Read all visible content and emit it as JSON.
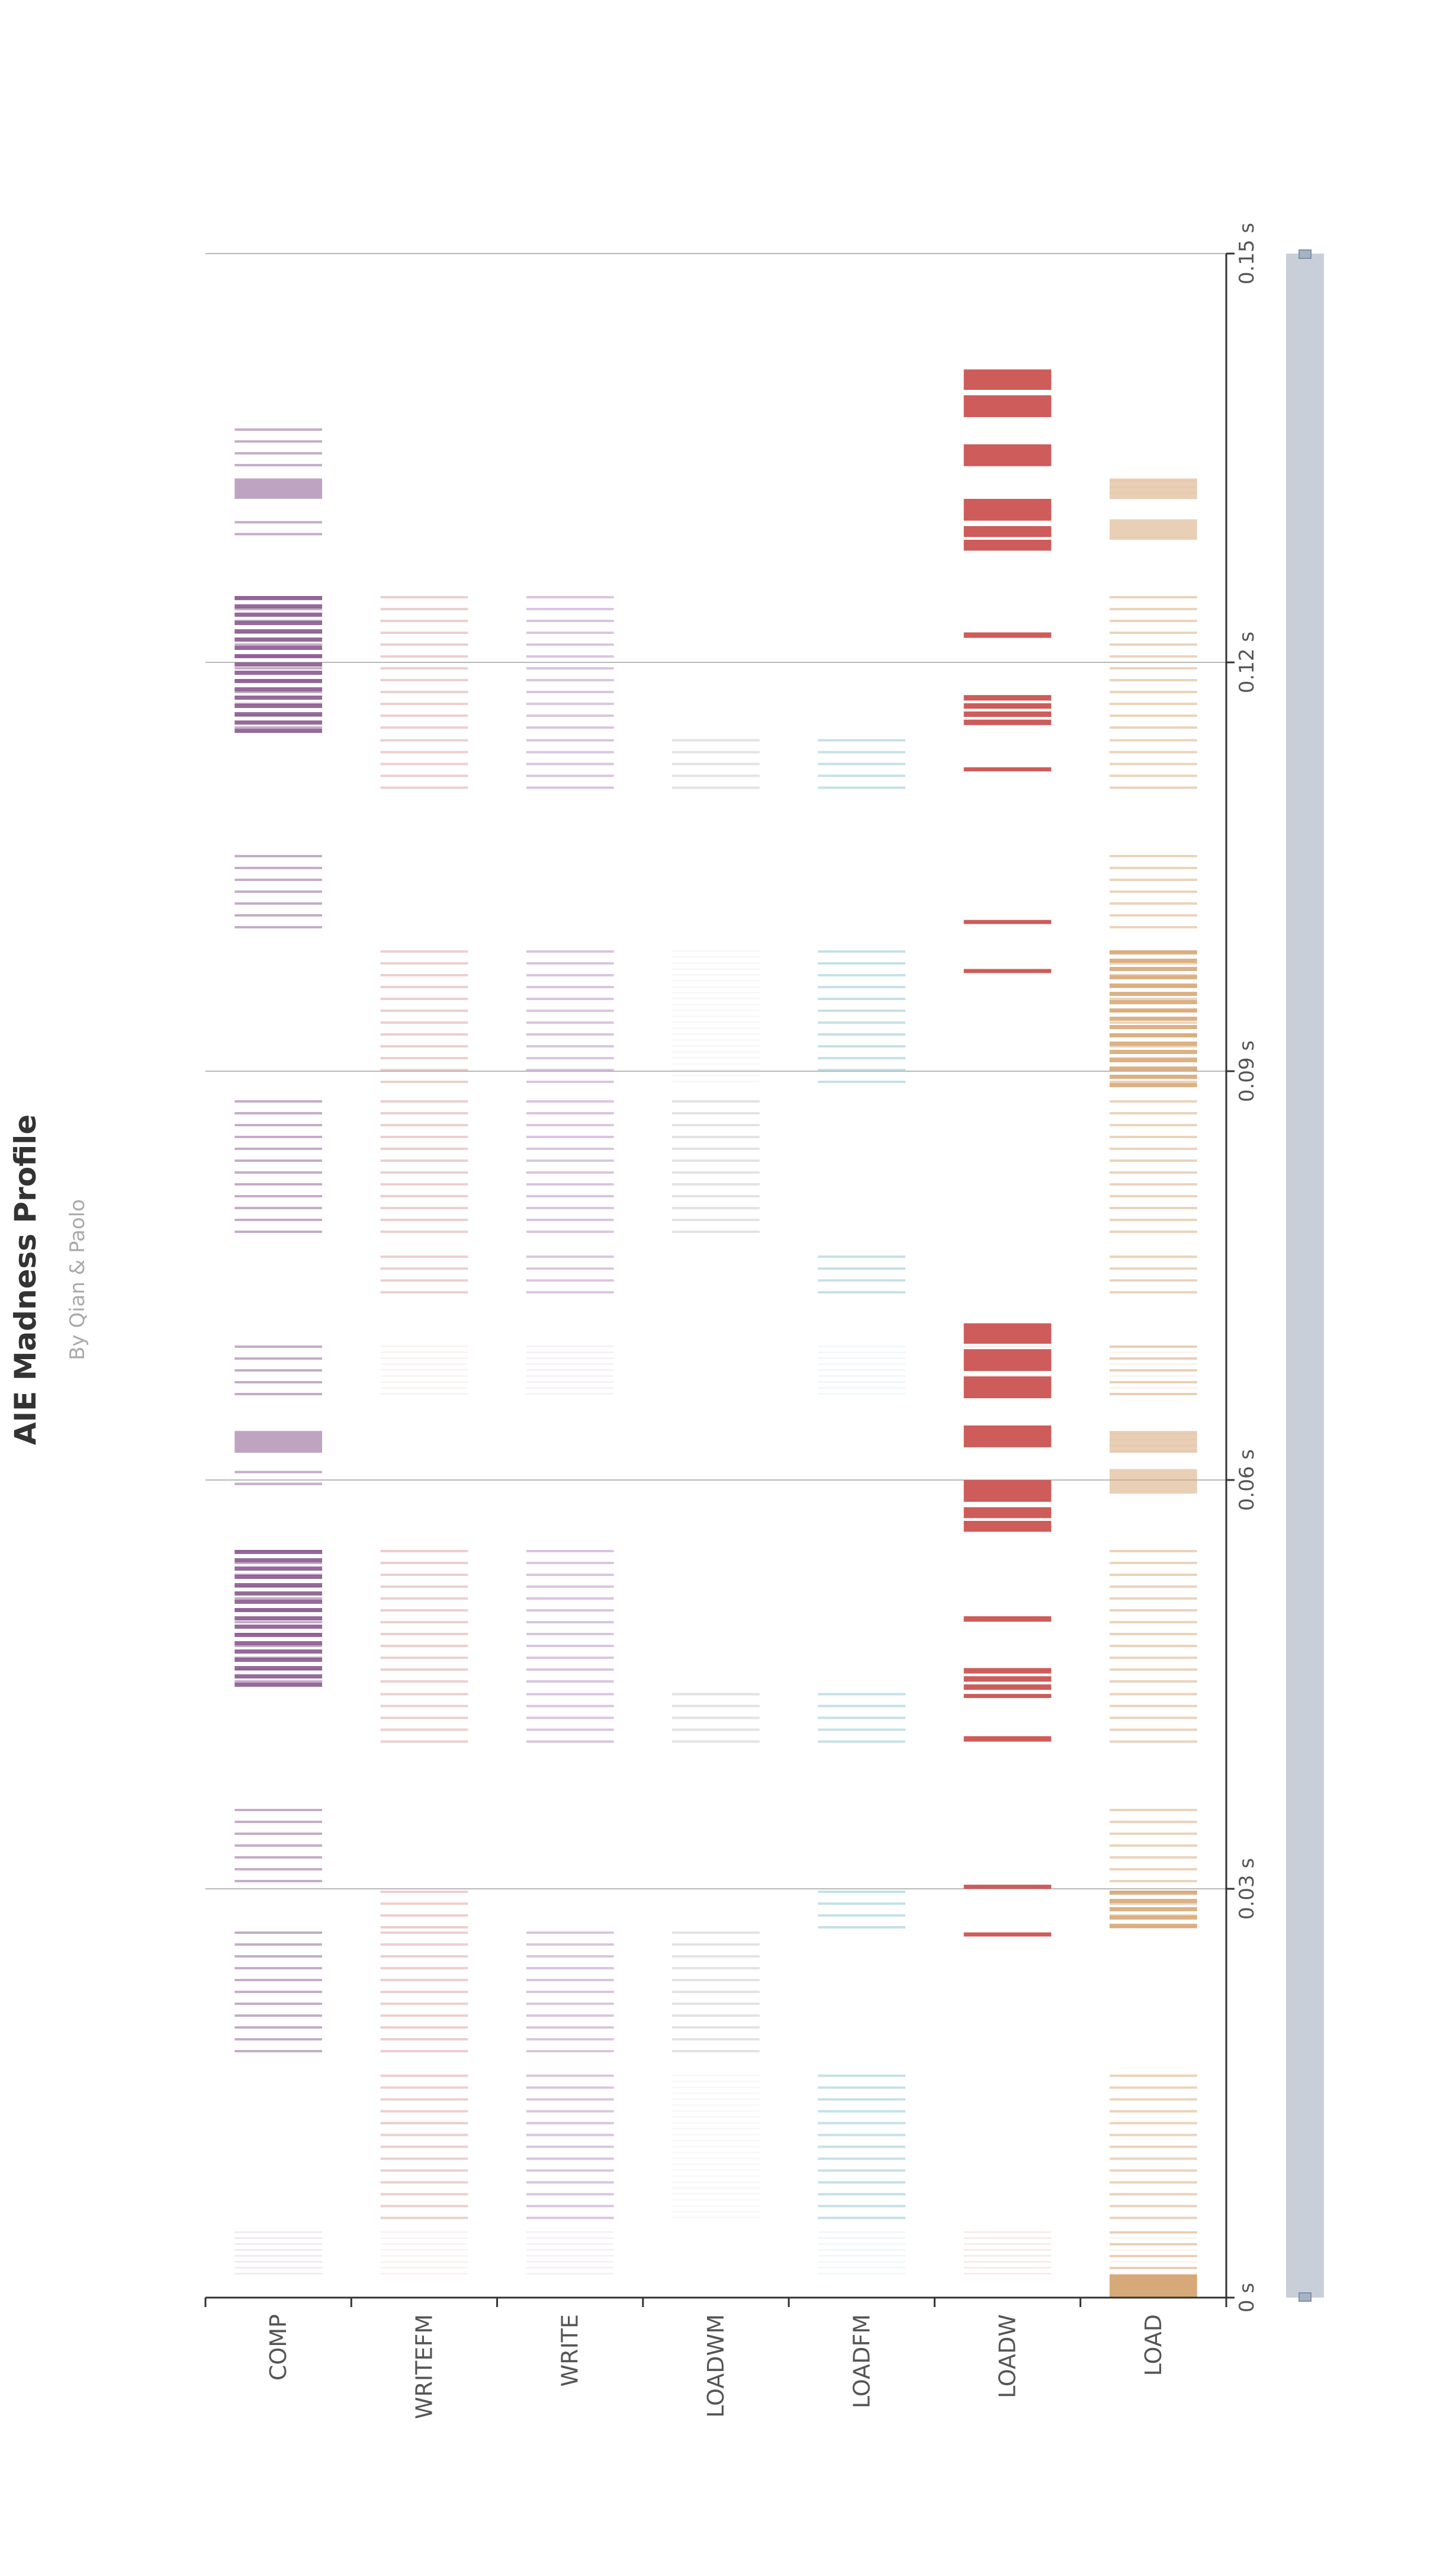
{
  "header": {
    "title": "AIE Madness Profile",
    "subtitle": "By Qian & Paolo"
  },
  "chart_data": {
    "type": "timeline",
    "title": "AIE Madness Profile",
    "subtitle": "By Qian & Paolo",
    "xlabel": "",
    "ylabel": "",
    "categories": [
      "COMP",
      "WRITEFM",
      "WRITE",
      "LOADWM",
      "LOADFM",
      "LOADW",
      "LOAD"
    ],
    "time_axis": {
      "min": 0,
      "max": 0.15,
      "unit": "s",
      "ticks": [
        {
          "value": 0,
          "label": "0 s"
        },
        {
          "value": 0.03,
          "label": "0.03 s"
        },
        {
          "value": 0.06,
          "label": "0.06 s"
        },
        {
          "value": 0.09,
          "label": "0.09 s"
        },
        {
          "value": 0.12,
          "label": "0.12 s"
        },
        {
          "value": 0.15,
          "label": "0.15 s"
        }
      ]
    },
    "colors": {
      "COMP": "#8b5a8f",
      "WRITEFM": "#d9a0a0",
      "WRITE": "#b48cc0",
      "LOADWM": "#c8c8c8",
      "LOADFM": "#8cc4cc",
      "LOADW": "#cd5c5a",
      "LOAD": "#d7a878",
      "zoom_slider": "#c9cfd9"
    },
    "layers": [
      {
        "name": "l1",
        "segments": [
          [
            0.0017,
            0.005
          ],
          [
            0.0055,
            0.0165
          ],
          [
            0.0175,
            0.027
          ],
          [
            0.027,
            0.03
          ],
          [
            0.03,
            0.036
          ],
          [
            0.0405,
            0.0445
          ],
          [
            0.0445,
            0.055
          ],
          [
            0.056,
            0.0578
          ],
          [
            0.059,
            0.0608
          ],
          [
            0.062,
            0.0636
          ],
          [
            0.066,
            0.07
          ],
          [
            0.073,
            0.0766
          ],
          [
            0.0775,
            0.088
          ],
          [
            0.089,
            0.099
          ],
          [
            0.1,
            0.106
          ],
          [
            0.11,
            0.1145
          ],
          [
            0.1145,
            0.125
          ],
          [
            0.126,
            0.1285
          ],
          [
            0.129,
            0.1305
          ],
          [
            0.132,
            0.1335
          ],
          [
            0.134,
            0.1373
          ],
          [
            0.137,
            0.141
          ]
        ],
        "rows": [
          {
            "category": "COMP",
            "active": [
              2,
              4,
              6,
              8,
              10,
              12,
              14,
              16,
              18,
              20
            ],
            "light": [
              0
            ],
            "dense": [
              6,
              16
            ],
            "block": [
              9,
              19
            ]
          },
          {
            "category": "WRITEFM",
            "active": [
              1,
              2,
              3,
              5,
              6,
              11,
              12,
              13,
              15,
              16
            ],
            "light": [
              0,
              10
            ],
            "dense": [],
            "block": []
          },
          {
            "category": "WRITE",
            "active": [
              1,
              2,
              5,
              6,
              11,
              12,
              13,
              15,
              16
            ],
            "light": [
              0,
              10
            ],
            "dense": [],
            "block": []
          },
          {
            "category": "LOADWM",
            "active": [
              2,
              5,
              12,
              15
            ],
            "light": [
              1,
              13
            ],
            "dense": [],
            "block": []
          },
          {
            "category": "LOADFM",
            "active": [
              1,
              3,
              5,
              11,
              13,
              15
            ],
            "light": [
              0,
              10
            ],
            "dense": [],
            "block": []
          },
          {
            "category": "LOADW",
            "active": [],
            "light": [
              0,
              10
            ],
            "dense": [],
            "block": []
          },
          {
            "category": "LOAD",
            "active": [
              0,
              1,
              3,
              4,
              5,
              6,
              10,
              11,
              12,
              13,
              14,
              15,
              16
            ],
            "light": [
              0,
              9,
              10,
              19
            ],
            "dense": [
              3,
              13
            ],
            "block": [
              8,
              9,
              18,
              19
            ]
          }
        ]
      }
    ],
    "loadw_bars": [
      [
        0.0265,
        0.0268
      ],
      [
        0.03,
        0.0303
      ],
      [
        0.0408,
        0.0412
      ],
      [
        0.044,
        0.0443
      ],
      [
        0.0446,
        0.045
      ],
      [
        0.0452,
        0.0456
      ],
      [
        0.0458,
        0.0462
      ],
      [
        0.0496,
        0.05
      ],
      [
        0.0562,
        0.057
      ],
      [
        0.0572,
        0.058
      ],
      [
        0.0584,
        0.06
      ],
      [
        0.0624,
        0.064
      ],
      [
        0.066,
        0.0676
      ],
      [
        0.068,
        0.0696
      ],
      [
        0.07,
        0.0715
      ],
      [
        0.0972,
        0.0975
      ],
      [
        0.1008,
        0.1011
      ],
      [
        0.112,
        0.1123
      ],
      [
        0.1154,
        0.1158
      ],
      [
        0.116,
        0.1164
      ],
      [
        0.1166,
        0.117
      ],
      [
        0.1172,
        0.1176
      ],
      [
        0.1218,
        0.1222
      ],
      [
        0.1282,
        0.129
      ],
      [
        0.1292,
        0.13
      ],
      [
        0.1304,
        0.132
      ],
      [
        0.1344,
        0.136
      ],
      [
        0.138,
        0.1396
      ],
      [
        0.14,
        0.1415
      ]
    ]
  }
}
